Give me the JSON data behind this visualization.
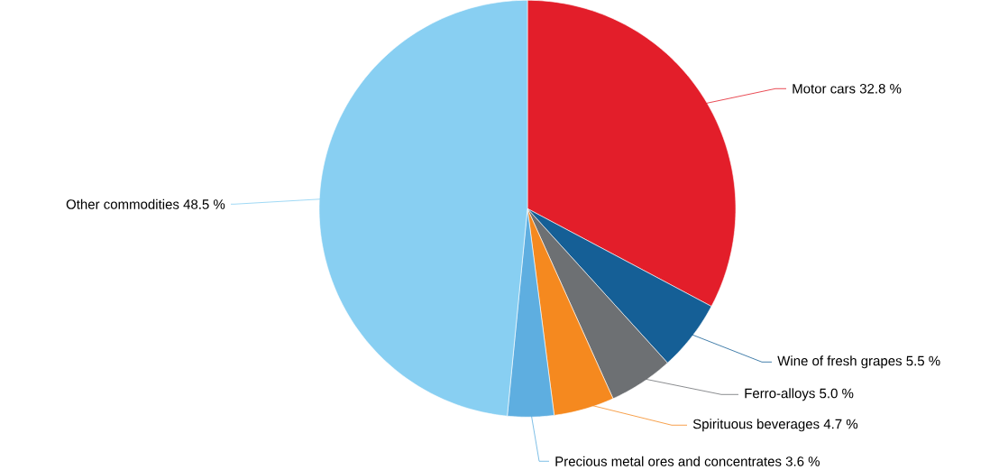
{
  "chart_data": {
    "type": "pie",
    "categories": [
      "Motor cars",
      "Wine of fresh grapes",
      "Ferro-alloys",
      "Spirituous beverages",
      "Precious metal ores and concentrates",
      "Other commodities"
    ],
    "values": [
      32.8,
      5.5,
      5.0,
      4.7,
      3.6,
      48.5
    ],
    "colors": [
      "#e31e2a",
      "#155f96",
      "#6d7073",
      "#f5891f",
      "#5eaee0",
      "#88cff2"
    ],
    "value_labels": [
      "32.8 %",
      "5.5 %",
      "5.0 %",
      "4.7 %",
      "3.6 %",
      "48.5 %"
    ]
  }
}
